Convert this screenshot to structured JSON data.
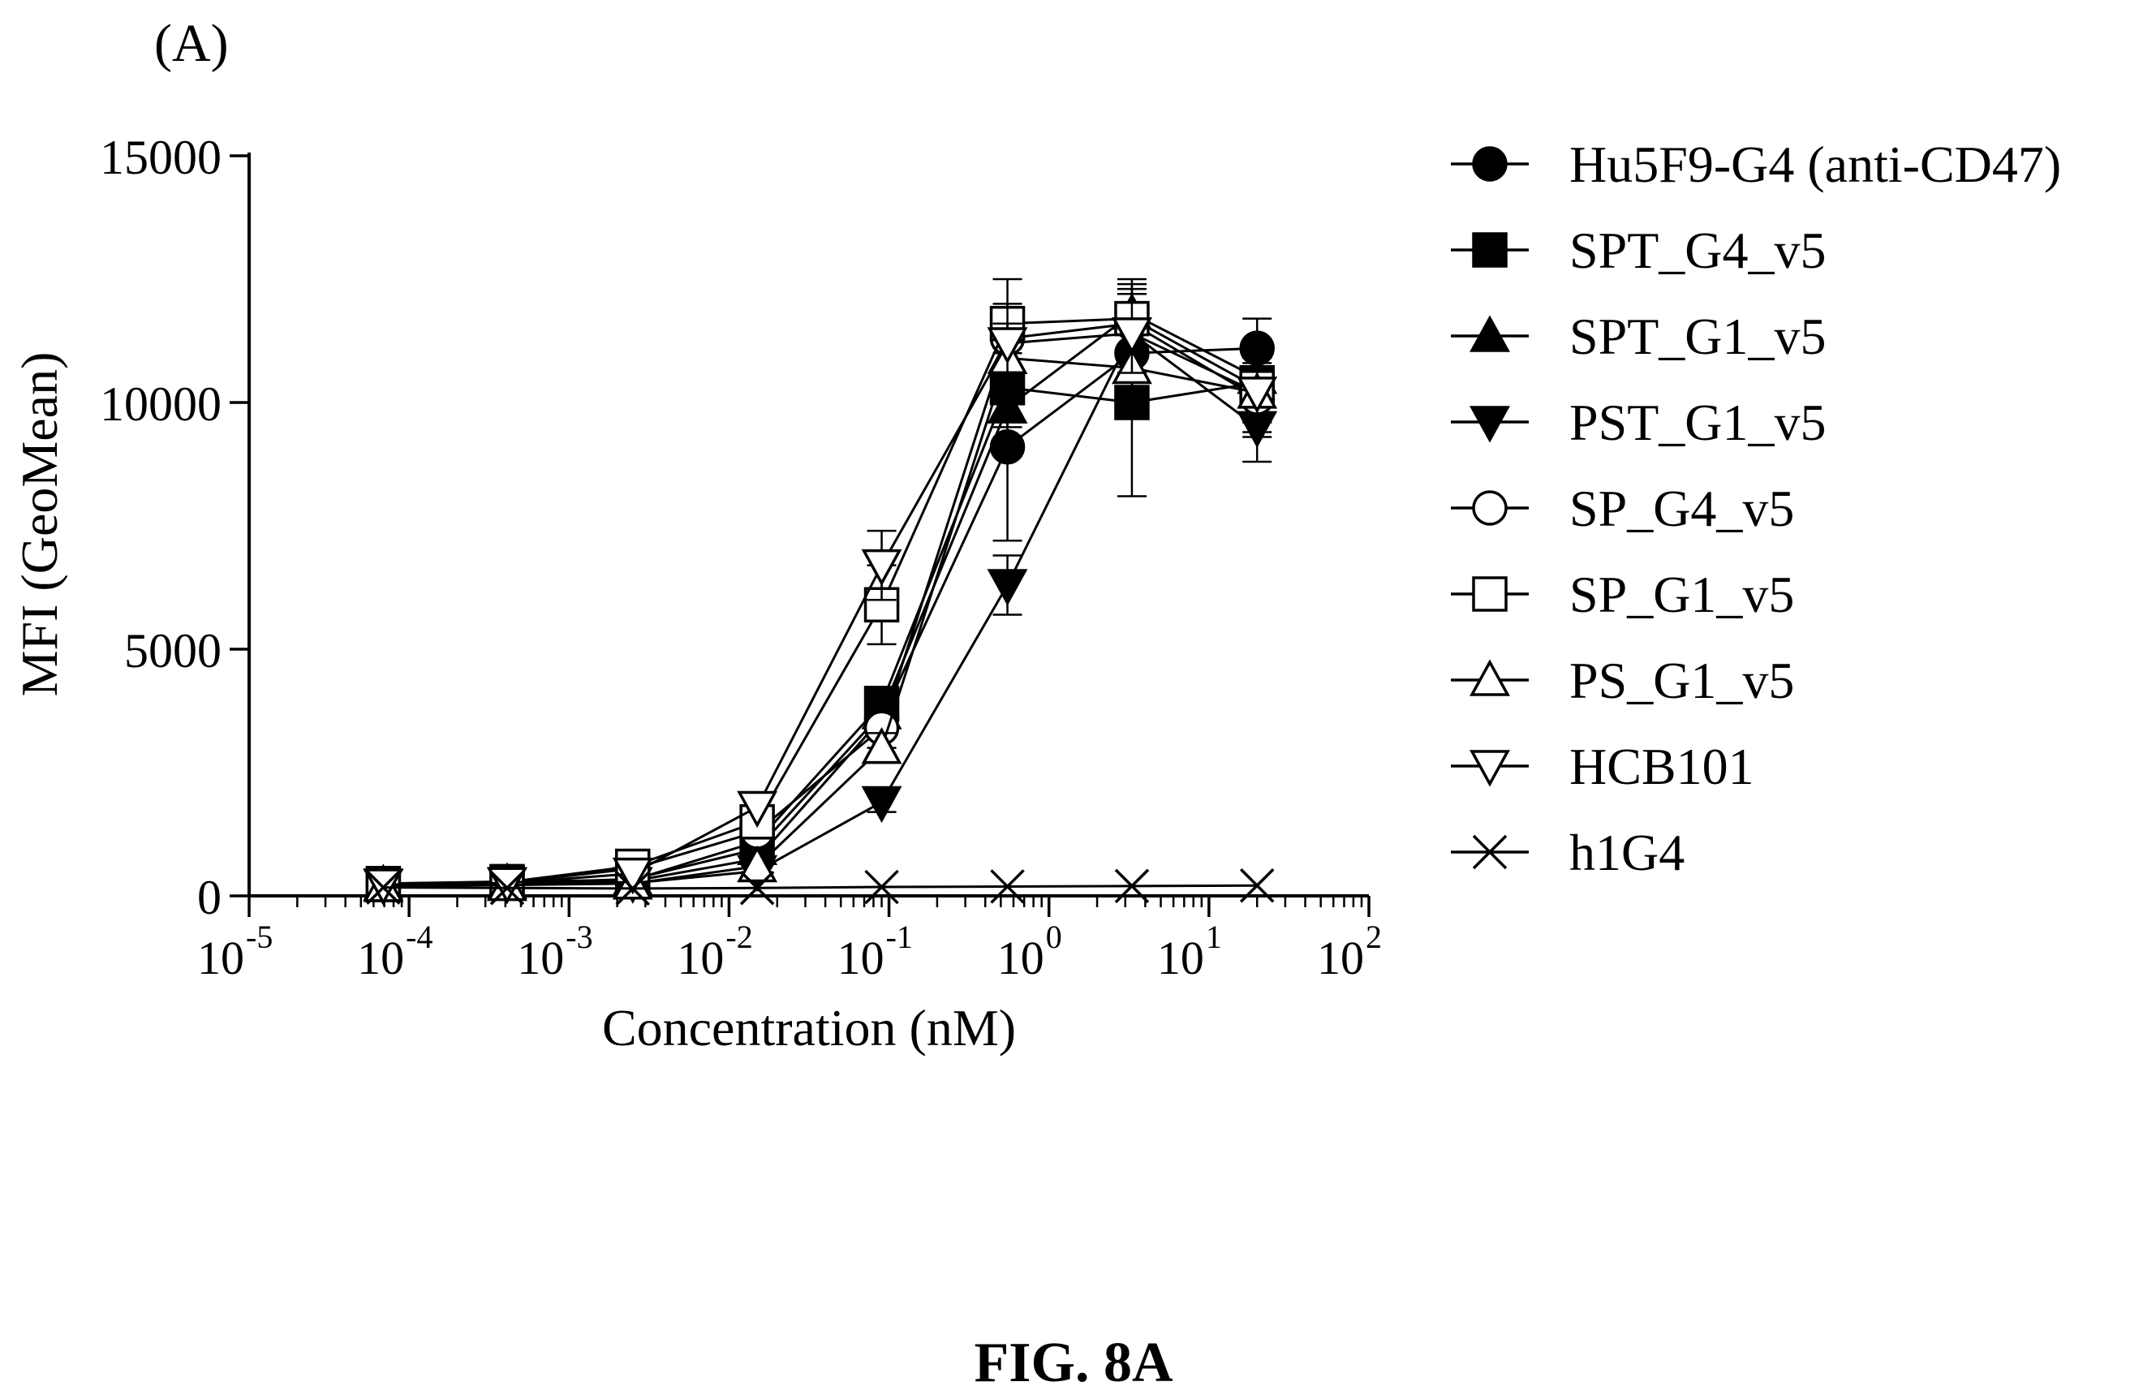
{
  "panel_label": "(A)",
  "figure_caption": "FIG. 8A",
  "chart_data": {
    "type": "scatter",
    "title": "",
    "xlabel": "Concentration (nM)",
    "ylabel": "MFI (GeoMean)",
    "xscale": "log",
    "xlim": [
      1e-05,
      100
    ],
    "ylim": [
      0,
      15000
    ],
    "x_ticks": [
      {
        "value": 1e-05,
        "base": "10",
        "exp": "-5"
      },
      {
        "value": 0.0001,
        "base": "10",
        "exp": "-4"
      },
      {
        "value": 0.001,
        "base": "10",
        "exp": "-3"
      },
      {
        "value": 0.01,
        "base": "10",
        "exp": "-2"
      },
      {
        "value": 0.1,
        "base": "10",
        "exp": "-1"
      },
      {
        "value": 1,
        "base": "10",
        "exp": "0"
      },
      {
        "value": 10,
        "base": "10",
        "exp": "1"
      },
      {
        "value": 100,
        "base": "10",
        "exp": "2"
      }
    ],
    "y_ticks": [
      {
        "value": 0,
        "label": "0"
      },
      {
        "value": 5000,
        "label": "5000"
      },
      {
        "value": 10000,
        "label": "10000"
      },
      {
        "value": 15000,
        "label": "15000"
      }
    ],
    "x": [
      6.9e-05,
      0.00041,
      0.0025,
      0.015,
      0.09,
      0.55,
      3.3,
      20
    ],
    "grid": false,
    "legend_position": "right",
    "series": [
      {
        "name": "Hu5F9-G4 (anti-CD47)",
        "marker": "circle-filled",
        "values": [
          250,
          280,
          300,
          750,
          3600,
          9100,
          11000,
          11100
        ],
        "errors": [
          0,
          0,
          0,
          0,
          300,
          1900,
          800,
          600
        ]
      },
      {
        "name": "SPT_G4_v5",
        "marker": "square-filled",
        "values": [
          250,
          290,
          320,
          1100,
          3900,
          10300,
          10000,
          10400
        ],
        "errors": [
          0,
          0,
          0,
          0,
          300,
          800,
          1900,
          800
        ]
      },
      {
        "name": "SPT_G1_v5",
        "marker": "triangle-up-filled",
        "values": [
          230,
          260,
          340,
          950,
          3700,
          9900,
          11800,
          10500
        ],
        "errors": [
          0,
          0,
          0,
          0,
          300,
          700,
          700,
          700
        ]
      },
      {
        "name": "PST_G1_v5",
        "marker": "triangle-down-filled",
        "values": [
          220,
          250,
          260,
          500,
          1900,
          6300,
          11400,
          9500
        ],
        "errors": [
          0,
          0,
          0,
          0,
          200,
          600,
          800,
          700
        ]
      },
      {
        "name": "SP_G4_v5",
        "marker": "circle-open",
        "values": [
          240,
          270,
          550,
          1300,
          3400,
          11300,
          11600,
          10100
        ],
        "errors": [
          0,
          0,
          0,
          0,
          400,
          600,
          700,
          800
        ]
      },
      {
        "name": "SP_G1_v5",
        "marker": "square-open",
        "values": [
          230,
          280,
          600,
          1500,
          5900,
          11600,
          11700,
          10300
        ],
        "errors": [
          0,
          0,
          0,
          0,
          800,
          900,
          700,
          700
        ]
      },
      {
        "name": "PS_G1_v5",
        "marker": "triangle-up-open",
        "values": [
          200,
          220,
          250,
          600,
          3000,
          10900,
          10700,
          10200
        ],
        "errors": [
          0,
          0,
          0,
          0,
          300,
          700,
          800,
          600
        ]
      },
      {
        "name": "HCB101",
        "marker": "triangle-down-open",
        "values": [
          230,
          260,
          450,
          1800,
          6700,
          11200,
          11400,
          10200
        ],
        "errors": [
          0,
          0,
          0,
          0,
          700,
          800,
          800,
          800
        ]
      },
      {
        "name": "h1G4",
        "marker": "cross",
        "values": [
          170,
          160,
          150,
          160,
          180,
          190,
          200,
          210
        ],
        "errors": [
          0,
          0,
          0,
          0,
          0,
          0,
          0,
          0
        ]
      }
    ]
  }
}
